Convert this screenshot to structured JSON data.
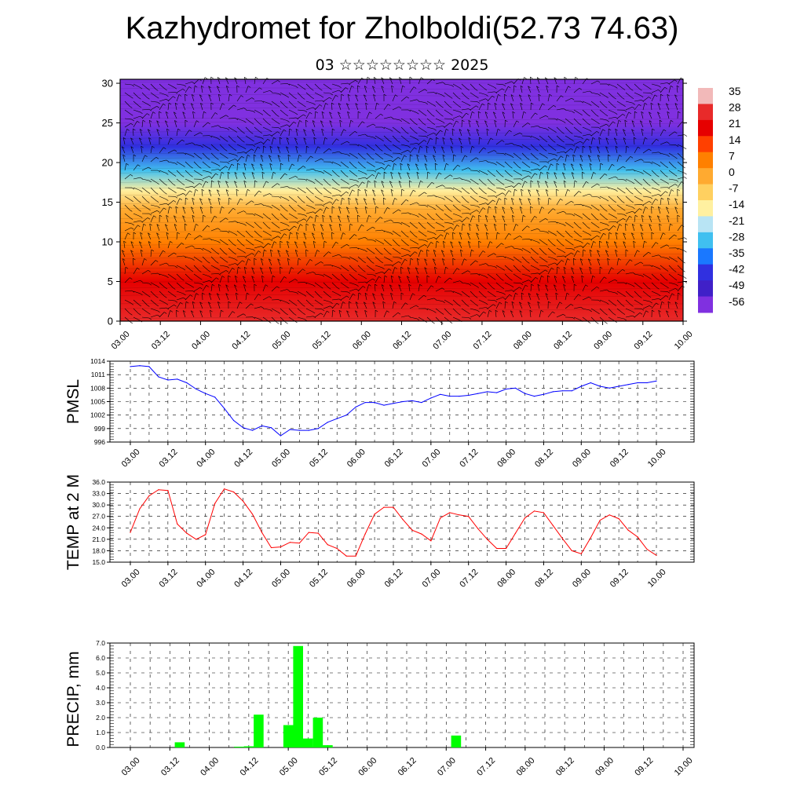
{
  "title": "Kazhydromet for Zholboldi(52.73 74.63)",
  "subtitle": "03 ☆☆☆☆☆☆☆☆ 2025",
  "colors": {
    "pmsl_line": "#0000ff",
    "temp_line": "#ff0000",
    "precip_bar": "#00ff00"
  },
  "chart_data": [
    {
      "type": "heatmap",
      "name": "cross-section",
      "y_ticks": [
        0,
        5,
        10,
        15,
        20,
        25,
        30
      ],
      "ylim": [
        0,
        30.5
      ],
      "x_ticks": [
        "03.00",
        "03.12",
        "04.00",
        "04.12",
        "05.00",
        "05.12",
        "06.00",
        "06.12",
        "07.00",
        "07.12",
        "08.00",
        "08.12",
        "09.00",
        "09.12",
        "10.00"
      ],
      "colorbar_labels": [
        "35",
        "28",
        "21",
        "14",
        "7",
        "0",
        "-7",
        "-14",
        "-21",
        "-28",
        "-35",
        "-42",
        "-49",
        "-56"
      ],
      "colormap": [
        "#f2b9b9",
        "#e82a2a",
        "#e60000",
        "#ff4000",
        "#ff8000",
        "#ffaa30",
        "#ffd060",
        "#fff0a0",
        "#b8e4f4",
        "#40c0f0",
        "#1a78ff",
        "#3030e0",
        "#4020c8",
        "#8030e0"
      ],
      "temperature_profile": [
        {
          "height": 0,
          "value": 26
        },
        {
          "height": 5,
          "value": 20
        },
        {
          "height": 10,
          "value": 10
        },
        {
          "height": 14,
          "value": 0
        },
        {
          "height": 16.5,
          "value": -12
        },
        {
          "height": 19,
          "value": -30
        },
        {
          "height": 22,
          "value": -45
        },
        {
          "height": 25,
          "value": -54
        },
        {
          "height": 30.5,
          "value": -58
        }
      ]
    },
    {
      "type": "line",
      "name": "pmsl",
      "ylabel": "PMSL",
      "y_ticks": [
        996,
        999,
        1002,
        1005,
        1008,
        1011,
        1014
      ],
      "ylim": [
        996,
        1014
      ],
      "x_ticks": [
        "03.00",
        "03.12",
        "04.00",
        "04.12",
        "05.00",
        "05.12",
        "06.00",
        "06.12",
        "07.00",
        "07.12",
        "08.00",
        "08.12",
        "09.00",
        "09.12",
        "10.00"
      ],
      "x_hours": [
        0,
        3,
        6,
        9,
        12,
        15,
        18,
        21,
        24,
        27,
        30,
        33,
        36,
        39,
        42,
        45,
        48,
        51,
        54,
        57,
        60,
        63,
        66,
        69,
        72,
        75,
        78,
        81,
        84,
        87,
        90,
        93,
        96,
        99,
        102,
        105,
        108,
        111,
        114,
        117,
        120,
        123,
        126,
        129,
        132,
        135,
        138,
        141,
        144,
        147,
        150,
        153,
        156,
        159,
        162,
        165,
        168
      ],
      "values": [
        1012.8,
        1013.0,
        1012.8,
        1010.5,
        1009.8,
        1010.0,
        1009.2,
        1007.8,
        1006.8,
        1006.0,
        1003.5,
        1000.8,
        999.2,
        998.6,
        999.6,
        999.2,
        997.4,
        998.8,
        998.6,
        998.6,
        999.0,
        1000.4,
        1001.2,
        1002.0,
        1003.8,
        1004.8,
        1004.8,
        1004.2,
        1004.6,
        1005.0,
        1005.2,
        1004.8,
        1005.8,
        1006.6,
        1006.2,
        1006.2,
        1006.4,
        1006.8,
        1007.2,
        1007.0,
        1007.8,
        1008.0,
        1006.8,
        1006.2,
        1006.6,
        1007.2,
        1007.4,
        1007.4,
        1008.4,
        1009.2,
        1008.4,
        1008.0,
        1008.4,
        1008.8,
        1009.2,
        1009.2,
        1009.6
      ]
    },
    {
      "type": "line",
      "name": "temp",
      "ylabel": "TEMP at 2 M",
      "y_ticks": [
        "15.0",
        "18.0",
        "21.0",
        "24.0",
        "27.0",
        "30.0",
        "33.0",
        "36.0"
      ],
      "ylim": [
        15,
        36
      ],
      "x_ticks": [
        "03.00",
        "03.12",
        "04.00",
        "04.12",
        "05.00",
        "05.12",
        "06.00",
        "06.12",
        "07.00",
        "07.12",
        "08.00",
        "08.12",
        "09.00",
        "09.12",
        "10.00"
      ],
      "x_hours": [
        0,
        3,
        6,
        9,
        12,
        15,
        18,
        21,
        24,
        27,
        30,
        33,
        36,
        39,
        42,
        45,
        48,
        51,
        54,
        57,
        60,
        63,
        66,
        69,
        72,
        75,
        78,
        81,
        84,
        87,
        90,
        93,
        96,
        99,
        102,
        105,
        108,
        111,
        114,
        117,
        120,
        123,
        126,
        129,
        132,
        135,
        138,
        141,
        144,
        147,
        150,
        153,
        156,
        159,
        162,
        165,
        168
      ],
      "values": [
        22.8,
        29.0,
        32.4,
        34.0,
        33.8,
        25.0,
        22.6,
        21.0,
        22.2,
        30.4,
        34.2,
        33.4,
        31.0,
        27.6,
        22.8,
        18.8,
        19.0,
        20.2,
        20.0,
        22.8,
        22.6,
        19.6,
        18.6,
        16.6,
        16.6,
        22.4,
        27.6,
        29.4,
        29.4,
        26.2,
        23.4,
        22.4,
        20.6,
        26.6,
        28.0,
        27.4,
        27.0,
        23.8,
        21.0,
        18.6,
        18.6,
        22.6,
        26.6,
        28.4,
        28.0,
        24.6,
        21.2,
        18.0,
        17.2,
        21.4,
        26.0,
        27.4,
        26.4,
        23.4,
        21.6,
        18.4,
        16.8
      ]
    },
    {
      "type": "bar",
      "name": "precip",
      "ylabel": "PRECIP, mm",
      "y_ticks": [
        "0.0",
        "1.0",
        "2.0",
        "3.0",
        "4.0",
        "5.0",
        "6.0",
        "7.0"
      ],
      "ylim": [
        0,
        7
      ],
      "x_ticks": [
        "03.00",
        "03.12",
        "04.00",
        "04.12",
        "05.00",
        "05.12",
        "06.00",
        "06.12",
        "07.00",
        "07.12",
        "08.00",
        "08.12",
        "09.00",
        "09.12",
        "10.00"
      ],
      "bars": [
        {
          "hour": 15,
          "value": 0.35
        },
        {
          "hour": 33,
          "value": 0.05
        },
        {
          "hour": 36,
          "value": 0.08
        },
        {
          "hour": 39,
          "value": 2.2
        },
        {
          "hour": 48,
          "value": 1.5
        },
        {
          "hour": 51,
          "value": 6.8
        },
        {
          "hour": 54,
          "value": 0.6
        },
        {
          "hour": 57,
          "value": 2.0
        },
        {
          "hour": 60,
          "value": 0.15
        },
        {
          "hour": 99,
          "value": 0.8
        }
      ]
    }
  ]
}
